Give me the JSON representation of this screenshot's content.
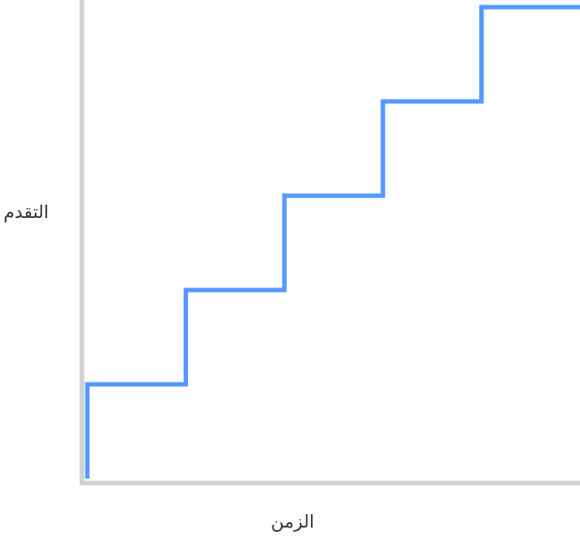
{
  "chart_data": {
    "type": "line",
    "step": true,
    "title": "",
    "xlabel": "الزمن",
    "ylabel": "التقدم",
    "x": [
      0,
      1,
      2,
      3,
      4,
      5
    ],
    "y": [
      1,
      2,
      3,
      4,
      5,
      5
    ],
    "xlim": [
      0,
      5
    ],
    "ylim": [
      0,
      5
    ],
    "grid": false,
    "ticks": false,
    "colors": {
      "line": "#5599ff",
      "axis": "#d0d0d0"
    }
  }
}
